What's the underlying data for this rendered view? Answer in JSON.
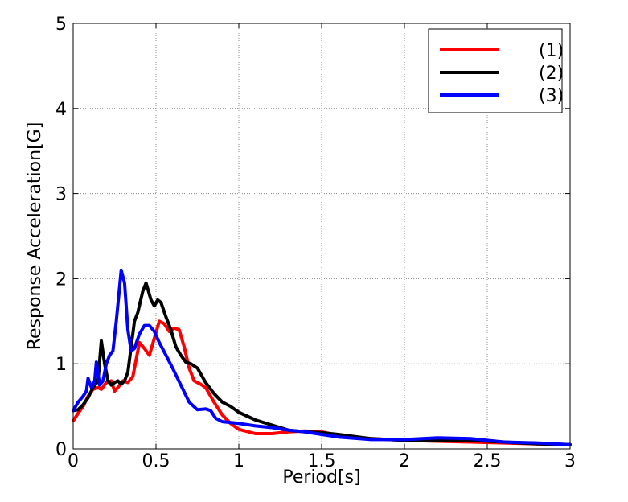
{
  "chart_data": {
    "type": "line",
    "title": "",
    "xlabel": "Period[s]",
    "ylabel": "Response Acceleration[G]",
    "xlim": [
      0,
      3
    ],
    "ylim": [
      0,
      5
    ],
    "xticks": [
      0,
      0.5,
      1,
      1.5,
      2,
      2.5,
      3
    ],
    "xtick_labels": [
      "0",
      "0.5",
      "1",
      "1.5",
      "2",
      "2.5",
      "3"
    ],
    "yticks": [
      0,
      1,
      2,
      3,
      4,
      5
    ],
    "ytick_labels": [
      "0",
      "1",
      "2",
      "3",
      "4",
      "5"
    ],
    "grid": true,
    "legend_position": "top-right",
    "series": [
      {
        "name": "(1)",
        "color": "#ff0000",
        "points": [
          [
            0.0,
            0.33
          ],
          [
            0.03,
            0.42
          ],
          [
            0.06,
            0.5
          ],
          [
            0.09,
            0.62
          ],
          [
            0.12,
            0.7
          ],
          [
            0.15,
            0.72
          ],
          [
            0.17,
            0.7
          ],
          [
            0.2,
            0.78
          ],
          [
            0.23,
            0.8
          ],
          [
            0.25,
            0.68
          ],
          [
            0.27,
            0.72
          ],
          [
            0.3,
            0.8
          ],
          [
            0.33,
            0.78
          ],
          [
            0.36,
            0.85
          ],
          [
            0.38,
            1.05
          ],
          [
            0.4,
            1.25
          ],
          [
            0.43,
            1.18
          ],
          [
            0.46,
            1.1
          ],
          [
            0.49,
            1.3
          ],
          [
            0.52,
            1.5
          ],
          [
            0.55,
            1.47
          ],
          [
            0.58,
            1.38
          ],
          [
            0.61,
            1.42
          ],
          [
            0.64,
            1.4
          ],
          [
            0.67,
            1.2
          ],
          [
            0.7,
            0.95
          ],
          [
            0.73,
            0.8
          ],
          [
            0.77,
            0.76
          ],
          [
            0.8,
            0.72
          ],
          [
            0.85,
            0.55
          ],
          [
            0.9,
            0.4
          ],
          [
            0.95,
            0.3
          ],
          [
            1.0,
            0.23
          ],
          [
            1.1,
            0.18
          ],
          [
            1.2,
            0.18
          ],
          [
            1.3,
            0.2
          ],
          [
            1.4,
            0.21
          ],
          [
            1.5,
            0.2
          ],
          [
            1.6,
            0.16
          ],
          [
            1.8,
            0.12
          ],
          [
            2.0,
            0.1
          ],
          [
            2.2,
            0.09
          ],
          [
            2.4,
            0.08
          ],
          [
            2.6,
            0.07
          ],
          [
            2.8,
            0.06
          ],
          [
            3.0,
            0.05
          ]
        ]
      },
      {
        "name": "(2)",
        "color": "#000000",
        "points": [
          [
            0.0,
            0.45
          ],
          [
            0.03,
            0.46
          ],
          [
            0.06,
            0.52
          ],
          [
            0.09,
            0.6
          ],
          [
            0.12,
            0.72
          ],
          [
            0.15,
            0.8
          ],
          [
            0.17,
            1.27
          ],
          [
            0.19,
            1.0
          ],
          [
            0.21,
            0.8
          ],
          [
            0.23,
            0.75
          ],
          [
            0.25,
            0.78
          ],
          [
            0.27,
            0.8
          ],
          [
            0.29,
            0.76
          ],
          [
            0.31,
            0.8
          ],
          [
            0.33,
            0.9
          ],
          [
            0.35,
            1.2
          ],
          [
            0.37,
            1.5
          ],
          [
            0.39,
            1.6
          ],
          [
            0.42,
            1.85
          ],
          [
            0.44,
            1.95
          ],
          [
            0.47,
            1.75
          ],
          [
            0.49,
            1.68
          ],
          [
            0.51,
            1.75
          ],
          [
            0.53,
            1.72
          ],
          [
            0.56,
            1.55
          ],
          [
            0.59,
            1.4
          ],
          [
            0.62,
            1.2
          ],
          [
            0.65,
            1.1
          ],
          [
            0.68,
            1.02
          ],
          [
            0.71,
            1.0
          ],
          [
            0.75,
            0.95
          ],
          [
            0.8,
            0.78
          ],
          [
            0.85,
            0.65
          ],
          [
            0.9,
            0.55
          ],
          [
            0.95,
            0.5
          ],
          [
            1.0,
            0.43
          ],
          [
            1.1,
            0.34
          ],
          [
            1.2,
            0.28
          ],
          [
            1.3,
            0.22
          ],
          [
            1.4,
            0.2
          ],
          [
            1.5,
            0.19
          ],
          [
            1.6,
            0.17
          ],
          [
            1.8,
            0.12
          ],
          [
            2.0,
            0.1
          ],
          [
            2.2,
            0.1
          ],
          [
            2.4,
            0.1
          ],
          [
            2.6,
            0.08
          ],
          [
            2.8,
            0.06
          ],
          [
            3.0,
            0.05
          ]
        ]
      },
      {
        "name": "(3)",
        "color": "#0000ff",
        "points": [
          [
            0.0,
            0.45
          ],
          [
            0.03,
            0.55
          ],
          [
            0.06,
            0.62
          ],
          [
            0.08,
            0.68
          ],
          [
            0.09,
            0.83
          ],
          [
            0.11,
            0.72
          ],
          [
            0.13,
            0.8
          ],
          [
            0.14,
            1.02
          ],
          [
            0.16,
            0.75
          ],
          [
            0.18,
            0.8
          ],
          [
            0.2,
            1.0
          ],
          [
            0.22,
            1.1
          ],
          [
            0.24,
            1.15
          ],
          [
            0.26,
            1.5
          ],
          [
            0.28,
            1.9
          ],
          [
            0.29,
            2.1
          ],
          [
            0.31,
            1.95
          ],
          [
            0.33,
            1.4
          ],
          [
            0.35,
            1.15
          ],
          [
            0.37,
            1.18
          ],
          [
            0.4,
            1.35
          ],
          [
            0.43,
            1.45
          ],
          [
            0.46,
            1.45
          ],
          [
            0.49,
            1.38
          ],
          [
            0.52,
            1.25
          ],
          [
            0.56,
            1.1
          ],
          [
            0.6,
            0.95
          ],
          [
            0.65,
            0.75
          ],
          [
            0.7,
            0.55
          ],
          [
            0.75,
            0.46
          ],
          [
            0.8,
            0.47
          ],
          [
            0.83,
            0.45
          ],
          [
            0.86,
            0.36
          ],
          [
            0.9,
            0.32
          ],
          [
            1.0,
            0.3
          ],
          [
            1.1,
            0.27
          ],
          [
            1.2,
            0.25
          ],
          [
            1.3,
            0.22
          ],
          [
            1.4,
            0.2
          ],
          [
            1.5,
            0.17
          ],
          [
            1.6,
            0.14
          ],
          [
            1.8,
            0.11
          ],
          [
            2.0,
            0.11
          ],
          [
            2.2,
            0.13
          ],
          [
            2.4,
            0.12
          ],
          [
            2.6,
            0.08
          ],
          [
            2.8,
            0.07
          ],
          [
            3.0,
            0.05
          ]
        ]
      }
    ]
  }
}
